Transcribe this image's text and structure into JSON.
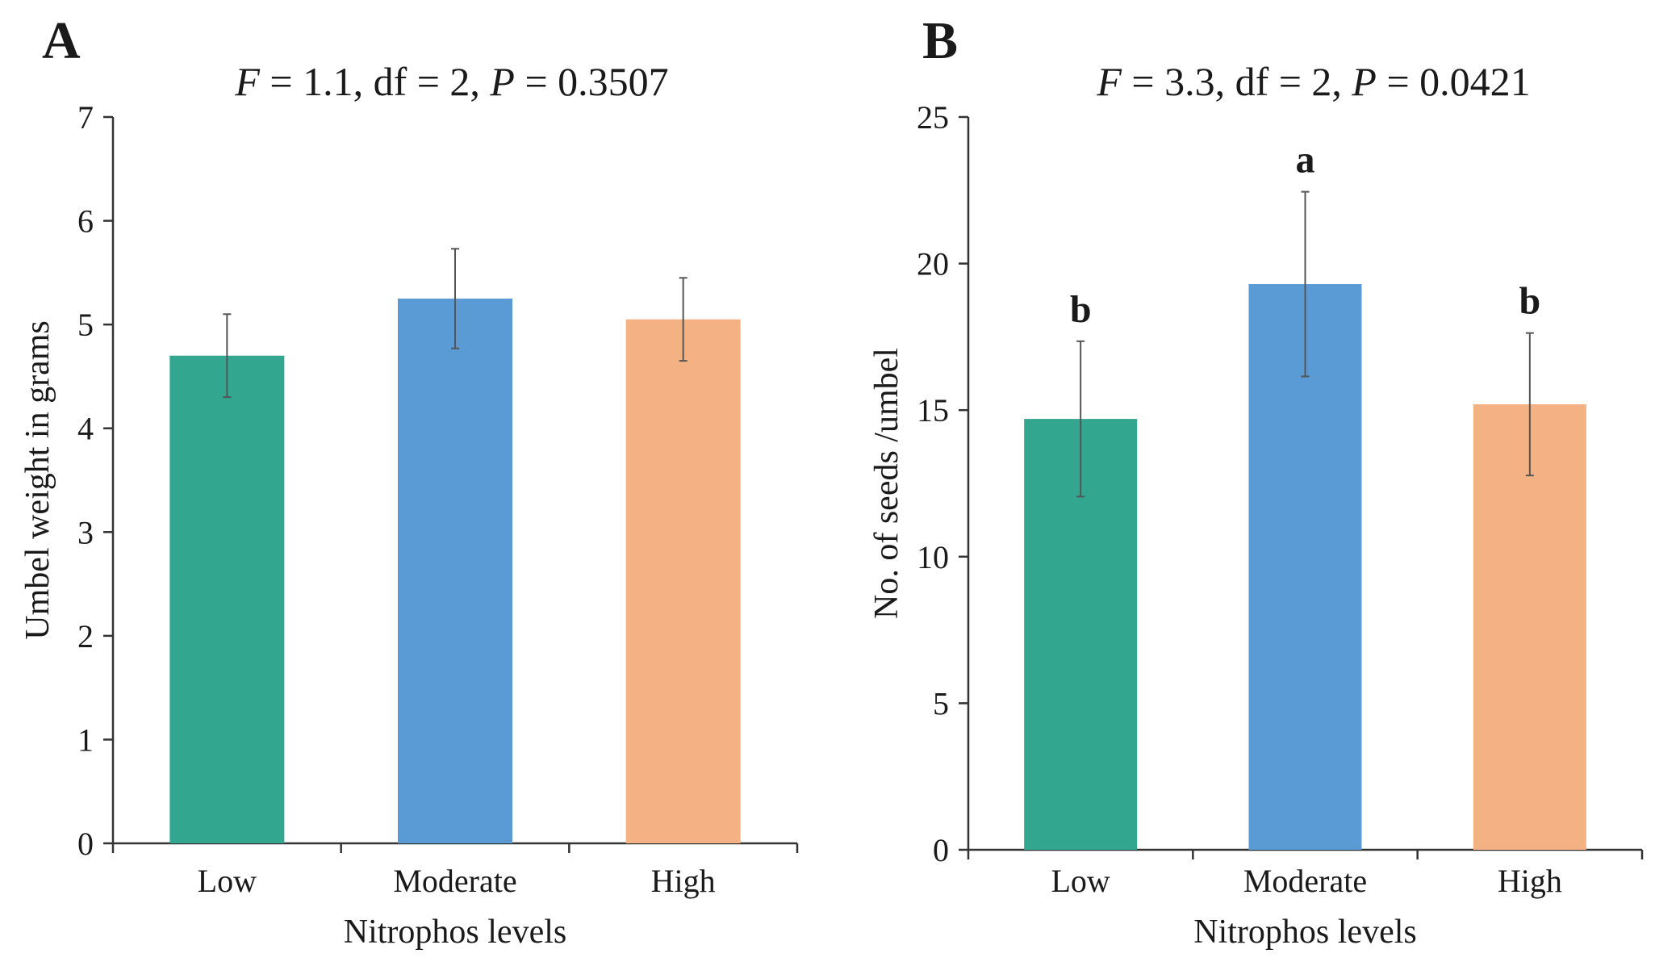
{
  "chart_data": [
    {
      "type": "bar",
      "panel": "A",
      "title_parts": [
        {
          "text": "F",
          "italic": true
        },
        {
          "text": " = 1.1, df = 2, ",
          "italic": false
        },
        {
          "text": "P",
          "italic": true
        },
        {
          "text": " = 0.3507",
          "italic": false
        }
      ],
      "xlabel": "Nitrophos levels",
      "ylabel": "Umbel weight in grams",
      "categories": [
        "Low",
        "Moderate",
        "High"
      ],
      "values": [
        4.7,
        5.25,
        5.05
      ],
      "error": [
        0.4,
        0.48,
        0.4
      ],
      "colors": [
        "#32a68f",
        "#5b9bd5",
        "#f4b183"
      ],
      "significance": [],
      "ylim": [
        0,
        7
      ],
      "yticks": [
        0,
        1,
        2,
        3,
        4,
        5,
        6,
        7
      ],
      "ytick_labels": [
        "0",
        "1",
        "2",
        "3",
        "4",
        "5",
        "6",
        "7"
      ]
    },
    {
      "type": "bar",
      "panel": "B",
      "title_parts": [
        {
          "text": "F",
          "italic": true
        },
        {
          "text": " = 3.3, df = 2, ",
          "italic": false
        },
        {
          "text": "P",
          "italic": true
        },
        {
          "text": " = 0.0421",
          "italic": false
        }
      ],
      "xlabel": "Nitrophos levels",
      "ylabel": "No. of seeds /umbel",
      "categories": [
        "Low",
        "Moderate",
        "High"
      ],
      "values": [
        14.7,
        19.3,
        15.2
      ],
      "error": [
        2.65,
        3.15,
        2.43
      ],
      "colors": [
        "#32a68f",
        "#5b9bd5",
        "#f4b183"
      ],
      "significance": [
        "b",
        "a",
        "b"
      ],
      "ylim": [
        0,
        25
      ],
      "yticks": [
        0,
        5,
        10,
        15,
        20,
        25
      ],
      "ytick_labels": [
        "0",
        "5",
        "10",
        "15",
        "20",
        "25"
      ]
    }
  ]
}
